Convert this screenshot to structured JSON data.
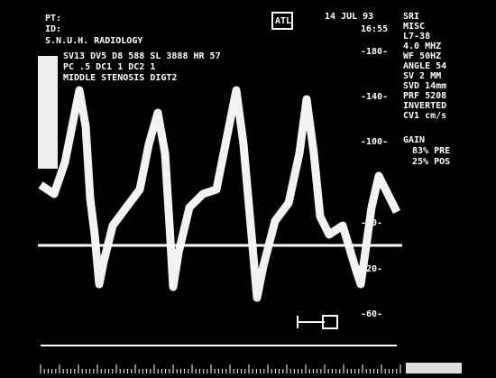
{
  "header": {
    "patient": "PT:",
    "id": "ID:",
    "institution": "S.N.U.H. RADIOLOGY",
    "params": [
      "SV13  DV5  D8 588  SL 3888  HR 57",
      "PC .5 DC1 1  DC2 1",
      "MIDDLE STENOSIS DIGT2"
    ]
  },
  "top_right": {
    "logo": "ATL",
    "date": "14 JUL 93",
    "time": "16:55"
  },
  "settings": [
    "SRI",
    "MISC",
    "L7-38",
    "4.0 MHZ",
    "WF 50HZ",
    "ANGLE 54",
    "SV 2 MM",
    "SVD 14mm",
    "PRF 5208",
    "INVERTED",
    "CV1 cm/s"
  ],
  "gain": {
    "label": "GAIN",
    "pre": "83% PRE",
    "pos": "25% POS"
  },
  "scale_labels": [
    "-180-",
    "-140-",
    "-100-",
    "-20-",
    "-20-",
    "-60-"
  ]
}
